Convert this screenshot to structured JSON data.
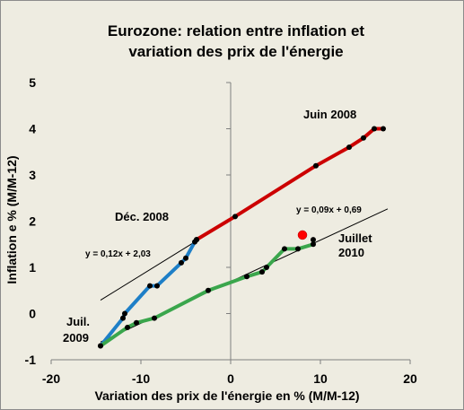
{
  "chart_data": {
    "type": "line",
    "title_line1": "Eurozone: relation entre inflation et",
    "title_line2": "variation des prix de  l'énergie",
    "xlabel": "Variation des prix de l'énergie en % (M/M-12)",
    "ylabel": "Inflation e % (M/M-12)",
    "xlim": [
      -20,
      20
    ],
    "ylim": [
      -1,
      5
    ],
    "xticks": [
      -20,
      -10,
      0,
      10,
      20
    ],
    "yticks": [
      -1,
      0,
      1,
      2,
      3,
      4,
      5
    ],
    "grid": false,
    "series": [
      {
        "color": "#cc0000",
        "points": [
          [
            -3.8,
            1.6
          ],
          [
            0.5,
            2.1
          ],
          [
            9.5,
            3.2
          ],
          [
            13.2,
            3.6
          ],
          [
            14.8,
            3.8
          ],
          [
            16.0,
            4.0
          ],
          [
            17.0,
            4.0
          ]
        ]
      },
      {
        "color": "#1e7fc7",
        "points": [
          [
            -14.5,
            -0.7
          ],
          [
            -12.0,
            -0.1
          ],
          [
            -11.8,
            0.0
          ],
          [
            -9.0,
            0.6
          ],
          [
            -8.2,
            0.6
          ],
          [
            -5.5,
            1.1
          ],
          [
            -5.0,
            1.2
          ],
          [
            -4.0,
            1.55
          ],
          [
            -3.8,
            1.6
          ]
        ]
      },
      {
        "color": "#3aa64c",
        "points": [
          [
            -14.5,
            -0.7
          ],
          [
            -11.5,
            -0.3
          ],
          [
            -10.5,
            -0.2
          ],
          [
            -8.5,
            -0.1
          ],
          [
            -2.5,
            0.5
          ],
          [
            1.8,
            0.8
          ],
          [
            3.5,
            0.9
          ],
          [
            4.0,
            1.0
          ],
          [
            6.0,
            1.4
          ],
          [
            7.5,
            1.4
          ],
          [
            9.2,
            1.5
          ],
          [
            9.2,
            1.6
          ]
        ]
      }
    ],
    "highlight_point": {
      "x": 8.0,
      "y": 1.7,
      "color": "#ff0000"
    },
    "trendlines": [
      {
        "equation": "y = 0,12x + 2,03",
        "slope": 0.12,
        "intercept": 2.03,
        "x_range": [
          -14.5,
          -4
        ]
      },
      {
        "equation": "y = 0,09x + 0,69",
        "slope": 0.09,
        "intercept": 0.69,
        "x_range": [
          -14.5,
          17.5
        ]
      }
    ],
    "annotations": [
      {
        "text": "Juin 2008"
      },
      {
        "text": "Déc. 2008"
      },
      {
        "text": "Juillet"
      },
      {
        "text": "2010"
      },
      {
        "text": "Juil."
      },
      {
        "text": "2009"
      }
    ]
  }
}
